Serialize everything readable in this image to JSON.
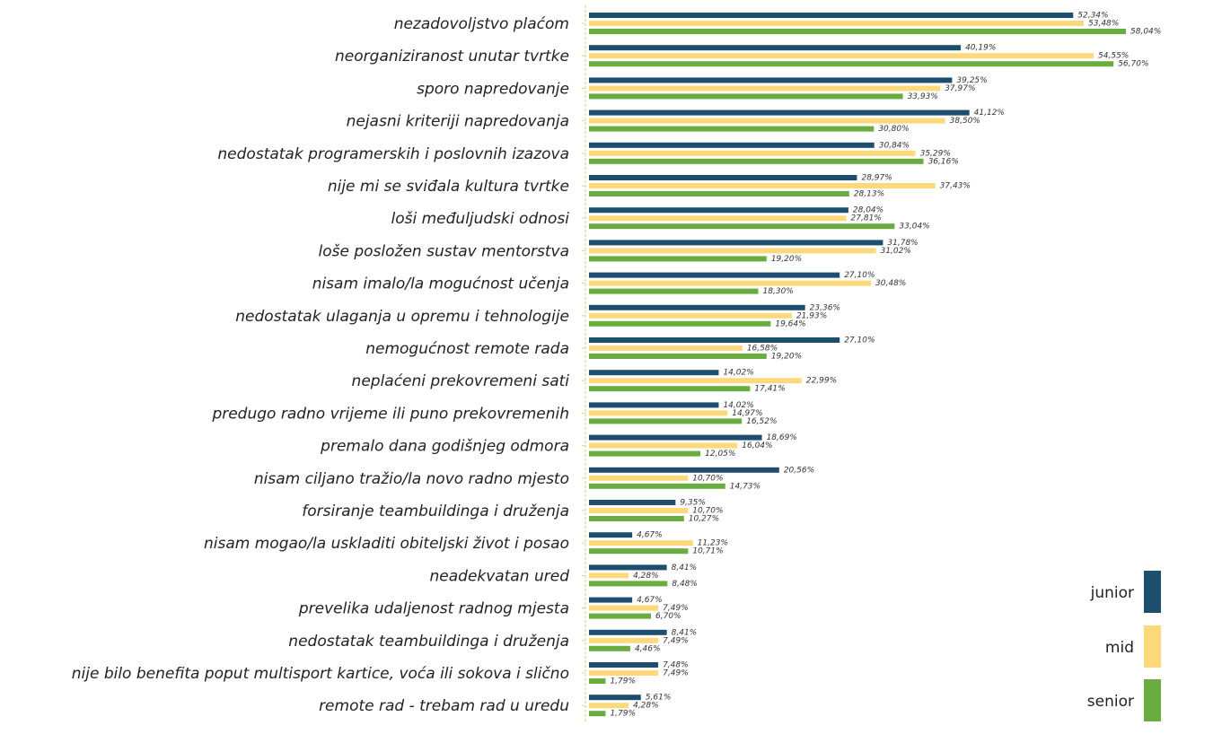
{
  "chart_data": {
    "type": "bar",
    "orientation": "horizontal",
    "title": "",
    "xlabel": "",
    "ylabel": "",
    "xlim": [
      0,
      58.04
    ],
    "grid": false,
    "legend_position": "bottom-right",
    "categories": [
      "nezadovoljstvo plaćom",
      "neorganiziranost unutar tvrtke",
      "sporo napredovanje",
      "nejasni kriteriji napredovanja",
      "nedostatak programerskih i poslovnih izazova",
      "nije mi se sviđala kultura tvrtke",
      "loši međuljudski odnosi",
      "loše posložen sustav mentorstva",
      "nisam imalo/la mogućnost učenja",
      "nedostatak ulaganja u opremu i tehnologije",
      "nemogućnost remote rada",
      "neplaćeni prekovremeni sati",
      "predugo radno vrijeme ili puno prekovremenih",
      "premalo dana godišnjeg odmora",
      "nisam ciljano tražio/la novo radno mjesto",
      "forsiranje teambuildinga i druženja",
      "nisam mogao/la uskladiti obiteljski život i posao",
      "neadekvatan ured",
      "prevelika udaljenost radnog mjesta",
      "nedostatak teambuildinga i druženja",
      "nije bilo benefita poput multisport kartice, voća ili sokova i slično",
      "remote rad - trebam rad u uredu"
    ],
    "series": [
      {
        "name": "junior",
        "color": "#1e4e6e",
        "values": [
          52.34,
          40.19,
          39.25,
          41.12,
          30.84,
          28.97,
          28.04,
          31.78,
          27.1,
          23.36,
          27.1,
          14.02,
          14.02,
          18.69,
          20.56,
          9.35,
          4.67,
          8.41,
          4.67,
          8.41,
          7.48,
          5.61
        ],
        "labels": [
          "52,34%",
          "40,19%",
          "39,25%",
          "41,12%",
          "30,84%",
          "28,97%",
          "28,04%",
          "31,78%",
          "27,10%",
          "23,36%",
          "27,10%",
          "14,02%",
          "14,02%",
          "18,69%",
          "20,56%",
          "9,35%",
          "4,67%",
          "8,41%",
          "4,67%",
          "8,41%",
          "7,48%",
          "5,61%"
        ]
      },
      {
        "name": "mid",
        "color": "#fdd97c",
        "values": [
          53.48,
          54.55,
          37.97,
          38.5,
          35.29,
          37.43,
          27.81,
          31.02,
          30.48,
          21.93,
          16.58,
          22.99,
          14.97,
          16.04,
          10.7,
          10.7,
          11.23,
          4.28,
          7.49,
          7.49,
          7.49,
          4.28
        ],
        "labels": [
          "53,48%",
          "54,55%",
          "37,97%",
          "38,50%",
          "35,29%",
          "37,43%",
          "27,81%",
          "31,02%",
          "30,48%",
          "21,93%",
          "16,58%",
          "22,99%",
          "14,97%",
          "16,04%",
          "10,70%",
          "10,70%",
          "11,23%",
          "4,28%",
          "7,49%",
          "7,49%",
          "7,49%",
          "4,28%"
        ]
      },
      {
        "name": "senior",
        "color": "#6aac3f",
        "values": [
          58.04,
          56.7,
          33.93,
          30.8,
          36.16,
          28.13,
          33.04,
          19.2,
          18.3,
          19.64,
          19.2,
          17.41,
          16.52,
          12.05,
          14.73,
          10.27,
          10.71,
          8.48,
          6.7,
          4.46,
          1.79,
          1.79
        ],
        "labels": [
          "58,04%",
          "56,70%",
          "33,93%",
          "30,80%",
          "36,16%",
          "28,13%",
          "33,04%",
          "19,20%",
          "18,30%",
          "19,64%",
          "19,20%",
          "17,41%",
          "16,52%",
          "12,05%",
          "14,73%",
          "10,27%",
          "10,71%",
          "8,48%",
          "6,70%",
          "4,46%",
          "1,79%",
          "1,79%"
        ]
      }
    ]
  }
}
